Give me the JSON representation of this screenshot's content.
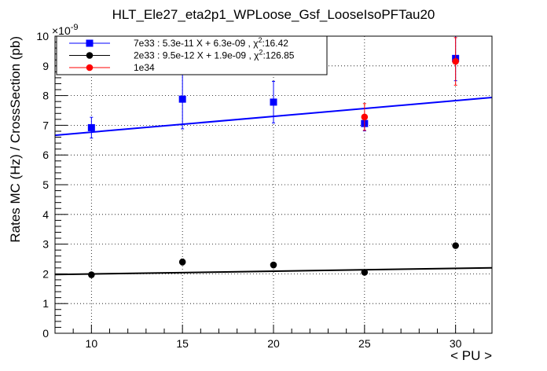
{
  "chart_data": {
    "type": "scatter",
    "title": "HLT_Ele27_eta2p1_WPLoose_Gsf_LooseIsoPFTau20",
    "xlabel": "< PU >",
    "ylabel": "Rates MC (Hz) / CrossSection (pb)",
    "y_exponent_label": "×10",
    "y_exponent_power": "-9",
    "xlim": [
      8,
      32
    ],
    "ylim": [
      0,
      10
    ],
    "xticks": [
      10,
      15,
      20,
      25,
      30
    ],
    "yticks": [
      0,
      1,
      2,
      3,
      4,
      5,
      6,
      7,
      8,
      9,
      10
    ],
    "grid": true,
    "legend_position": "top-left",
    "series": [
      {
        "name": "7e33 : 5.3e-11 X + 6.3e-09 , χ²:16.42",
        "legend_prefix": "7e33 : 5.3e-11 X + 6.3e-09 , χ",
        "legend_sup": "2",
        "legend_suffix": ":16.42",
        "color": "#0000ff",
        "marker": "square",
        "x": [
          10,
          15,
          20,
          25,
          30
        ],
        "y": [
          6.92,
          7.88,
          7.78,
          7.06,
          9.25
        ],
        "yerr": [
          0.35,
          1.0,
          0.7,
          0.25,
          0.75
        ],
        "fit": {
          "slope": 0.053,
          "intercept": 6.24,
          "color": "#0000ff"
        }
      },
      {
        "name": "2e33 : 9.5e-12 X + 1.9e-09 , χ²:126.85",
        "legend_prefix": "2e33 : 9.5e-12 X + 1.9e-09 , χ",
        "legend_sup": "2",
        "legend_suffix": ":126.85",
        "color": "#000000",
        "marker": "circle",
        "x": [
          10,
          15,
          20,
          25,
          30
        ],
        "y": [
          1.97,
          2.4,
          2.3,
          2.05,
          2.95
        ],
        "yerr": [
          0.04,
          0.1,
          0.07,
          0.05,
          0.07
        ],
        "fit": {
          "slope": 0.0095,
          "intercept": 1.9,
          "color": "#000000"
        }
      },
      {
        "name": "1e34",
        "legend_prefix": "1e34",
        "legend_sup": "",
        "legend_suffix": "",
        "color": "#ff0000",
        "marker": "circle",
        "x": [
          25,
          30
        ],
        "y": [
          7.28,
          9.15
        ],
        "yerr": [
          0.45,
          0.8
        ]
      }
    ]
  }
}
